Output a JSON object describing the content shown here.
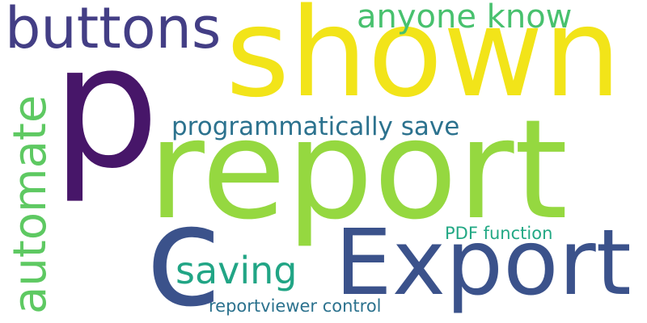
{
  "words": {
    "p": {
      "text": "p",
      "color": "#471669"
    },
    "shown": {
      "text": "shown",
      "color": "#f2e419"
    },
    "report": {
      "text": "report",
      "color": "#95d840"
    },
    "export": {
      "text": "Export",
      "color": "#3b528b"
    },
    "c": {
      "text": "c",
      "color": "#3b528b"
    },
    "buttons": {
      "text": "buttons",
      "color": "#433e85"
    },
    "anyone_know": {
      "text": "anyone know",
      "color": "#48c16e"
    },
    "automate": {
      "text": "automate",
      "color": "#5ec962"
    },
    "prog_save": {
      "text": "programmatically save",
      "color": "#2c728e"
    },
    "saving": {
      "text": "saving",
      "color": "#21a585"
    },
    "pdf_function": {
      "text": "PDF function",
      "color": "#22a884"
    },
    "reportviewer": {
      "text": "reportviewer control",
      "color": "#2c728e"
    }
  }
}
